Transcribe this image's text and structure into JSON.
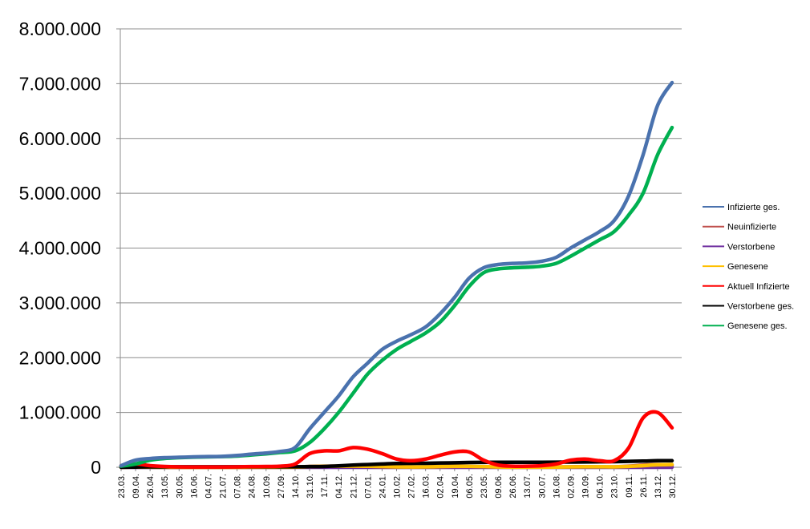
{
  "chart_data": {
    "type": "line",
    "title": "",
    "xlabel": "",
    "ylabel": "",
    "ylim": [
      0,
      8000000
    ],
    "yticks": [
      0,
      1000000,
      2000000,
      3000000,
      4000000,
      5000000,
      6000000,
      7000000,
      8000000
    ],
    "ytick_labels": [
      "0",
      "1.000.000",
      "2.000.000",
      "3.000.000",
      "4.000.000",
      "5.000.000",
      "6.000.000",
      "7.000.000",
      "8.000.000"
    ],
    "grid": "horizontal",
    "legend_position": "right",
    "categories": [
      "23.03.",
      "09.04.",
      "26.04.",
      "13.05.",
      "30.05.",
      "16.06.",
      "04.07.",
      "21.07.",
      "07.08.",
      "24.08.",
      "10.09.",
      "27.09.",
      "14.10.",
      "31.10.",
      "17.11.",
      "04.12.",
      "21.12.",
      "07.01.",
      "24.01.",
      "10.02.",
      "27.02.",
      "16.03.",
      "02.04.",
      "19.04.",
      "06.05.",
      "23.05.",
      "09.06.",
      "26.06.",
      "13.07.",
      "30.07.",
      "16.08.",
      "02.09.",
      "19.09.",
      "06.10.",
      "23.10.",
      "09.11.",
      "26.11.",
      "13.12.",
      "30.12."
    ],
    "series": [
      {
        "name": "Infizierte ges.",
        "color": "#4a72ae",
        "values": [
          30000,
          130000,
          160000,
          175000,
          182000,
          190000,
          195000,
          200000,
          215000,
          240000,
          260000,
          290000,
          360000,
          700000,
          1000000,
          1300000,
          1650000,
          1900000,
          2150000,
          2300000,
          2420000,
          2560000,
          2800000,
          3100000,
          3450000,
          3640000,
          3700000,
          3720000,
          3730000,
          3760000,
          3830000,
          4000000,
          4150000,
          4300000,
          4500000,
          4950000,
          5700000,
          6600000,
          7020000
        ]
      },
      {
        "name": "Neuinfizierte",
        "color": "#c0504d",
        "values": [
          1000,
          2000,
          1000,
          500,
          500,
          500,
          500,
          500,
          1000,
          1000,
          1500,
          2000,
          5000,
          15000,
          20000,
          20000,
          20000,
          15000,
          10000,
          7000,
          6000,
          8000,
          15000,
          18000,
          15000,
          8000,
          3000,
          2000,
          2000,
          3000,
          5000,
          10000,
          10000,
          8000,
          8000,
          20000,
          40000,
          50000,
          40000
        ]
      },
      {
        "name": "Verstorbene",
        "color": "#7030a0",
        "values": [
          50,
          150,
          150,
          50,
          30,
          20,
          10,
          10,
          10,
          10,
          10,
          10,
          20,
          100,
          300,
          500,
          600,
          600,
          500,
          300,
          200,
          150,
          200,
          250,
          200,
          100,
          40,
          20,
          20,
          30,
          50,
          100,
          150,
          150,
          150,
          300,
          500,
          700,
          600
        ]
      },
      {
        "name": "Genesene",
        "color": "#ffc000",
        "values": [
          500,
          4000,
          3000,
          1500,
          1000,
          800,
          500,
          500,
          800,
          1000,
          1200,
          1500,
          3000,
          12000,
          18000,
          20000,
          20000,
          18000,
          12000,
          8000,
          6000,
          7000,
          12000,
          16000,
          17000,
          12000,
          5000,
          2000,
          1500,
          2000,
          4000,
          8000,
          10000,
          9000,
          8000,
          15000,
          30000,
          45000,
          50000
        ]
      },
      {
        "name": "Aktuell Infizierte",
        "color": "#ff0000",
        "values": [
          30000,
          60000,
          30000,
          15000,
          8000,
          6000,
          5000,
          5000,
          8000,
          12000,
          15000,
          20000,
          60000,
          250000,
          300000,
          300000,
          360000,
          330000,
          250000,
          150000,
          120000,
          150000,
          220000,
          280000,
          280000,
          130000,
          40000,
          20000,
          20000,
          30000,
          60000,
          130000,
          150000,
          120000,
          120000,
          350000,
          900000,
          1000000,
          720000
        ]
      },
      {
        "name": "Verstorbene ges.",
        "color": "#000000",
        "values": [
          500,
          4000,
          7000,
          8000,
          8700,
          9000,
          9100,
          9200,
          9300,
          9400,
          9500,
          9600,
          10000,
          12000,
          15000,
          25000,
          40000,
          50000,
          60000,
          70000,
          72000,
          74000,
          78000,
          83000,
          88000,
          90000,
          91000,
          92000,
          92000,
          92000,
          93000,
          95000,
          97000,
          100000,
          103000,
          107000,
          113000,
          120000,
          120000
        ]
      },
      {
        "name": "Genesene ges.",
        "color": "#00b050",
        "values": [
          20000,
          60000,
          130000,
          160000,
          175000,
          185000,
          190000,
          195000,
          205000,
          225000,
          245000,
          270000,
          300000,
          450000,
          700000,
          1000000,
          1350000,
          1700000,
          1950000,
          2150000,
          2300000,
          2450000,
          2650000,
          2950000,
          3300000,
          3550000,
          3620000,
          3640000,
          3650000,
          3670000,
          3720000,
          3850000,
          4000000,
          4150000,
          4300000,
          4600000,
          5000000,
          5700000,
          6200000
        ]
      }
    ]
  }
}
